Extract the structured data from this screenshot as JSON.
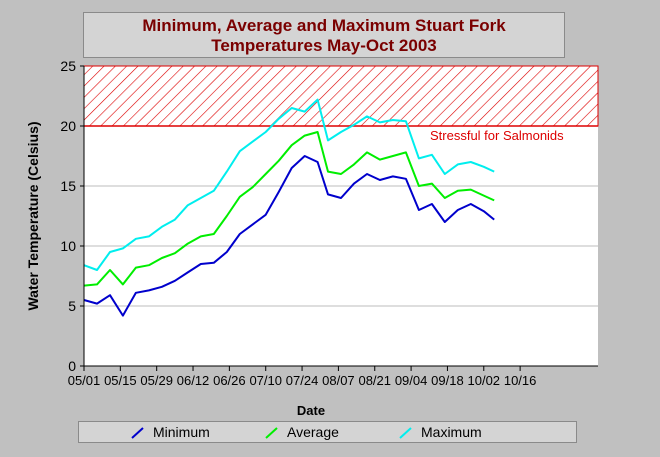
{
  "chart_data": {
    "type": "line",
    "title": "Minimum, Average and Maximum Stuart Fork",
    "subtitle": "Temperatures May-Oct 2003",
    "xlabel": "Date",
    "ylabel": "Water Temperature (Celsius)",
    "ylim": [
      0,
      25
    ],
    "y_ticks": [
      "0",
      "5",
      "10",
      "15",
      "20",
      "25"
    ],
    "x_ticks": [
      "05/01",
      "05/15",
      "05/29",
      "06/12",
      "06/26",
      "07/10",
      "07/24",
      "08/07",
      "08/21",
      "09/04",
      "09/18",
      "10/02",
      "10/16"
    ],
    "grid": true,
    "legend_position": "bottom",
    "threshold": {
      "value": 20,
      "upper": 25,
      "label": "Stressful for Salmonids",
      "color": "#dd0000"
    },
    "x": [
      "05/01",
      "05/06",
      "05/11",
      "05/16",
      "05/21",
      "05/26",
      "05/31",
      "06/05",
      "06/10",
      "06/15",
      "06/20",
      "06/25",
      "06/30",
      "07/05",
      "07/10",
      "07/15",
      "07/20",
      "07/25",
      "07/30",
      "08/03",
      "08/08",
      "08/13",
      "08/18",
      "08/23",
      "08/28",
      "09/02",
      "09/07",
      "09/12",
      "09/17",
      "09/22",
      "09/27",
      "10/02",
      "10/06"
    ],
    "series": [
      {
        "name": "Minimum",
        "color": "#0000cc",
        "values": [
          5.5,
          5.2,
          5.9,
          4.2,
          6.1,
          6.3,
          6.6,
          7.1,
          7.8,
          8.5,
          8.6,
          9.5,
          11.0,
          11.8,
          12.6,
          14.5,
          16.5,
          17.5,
          17.0,
          14.3,
          14.0,
          15.2,
          16.0,
          15.5,
          15.8,
          15.6,
          13.0,
          13.5,
          12.0,
          13.0,
          13.5,
          12.9,
          12.2
        ]
      },
      {
        "name": "Average",
        "color": "#00ee00",
        "values": [
          6.7,
          6.8,
          8.0,
          6.8,
          8.2,
          8.4,
          9.0,
          9.4,
          10.2,
          10.8,
          11.0,
          12.5,
          14.1,
          14.9,
          16.0,
          17.1,
          18.4,
          19.2,
          19.5,
          16.2,
          16.0,
          16.8,
          17.8,
          17.2,
          17.5,
          17.8,
          15.0,
          15.2,
          14.0,
          14.6,
          14.7,
          14.2,
          13.8
        ]
      },
      {
        "name": "Maximum",
        "color": "#00eeee",
        "values": [
          8.4,
          8.0,
          9.5,
          9.8,
          10.6,
          10.8,
          11.6,
          12.2,
          13.4,
          14.0,
          14.6,
          16.2,
          17.9,
          18.7,
          19.5,
          20.6,
          21.5,
          21.2,
          22.2,
          18.8,
          19.5,
          20.1,
          20.8,
          20.3,
          20.5,
          20.4,
          17.3,
          17.6,
          16.0,
          16.8,
          17.0,
          16.6,
          16.2
        ]
      }
    ]
  }
}
